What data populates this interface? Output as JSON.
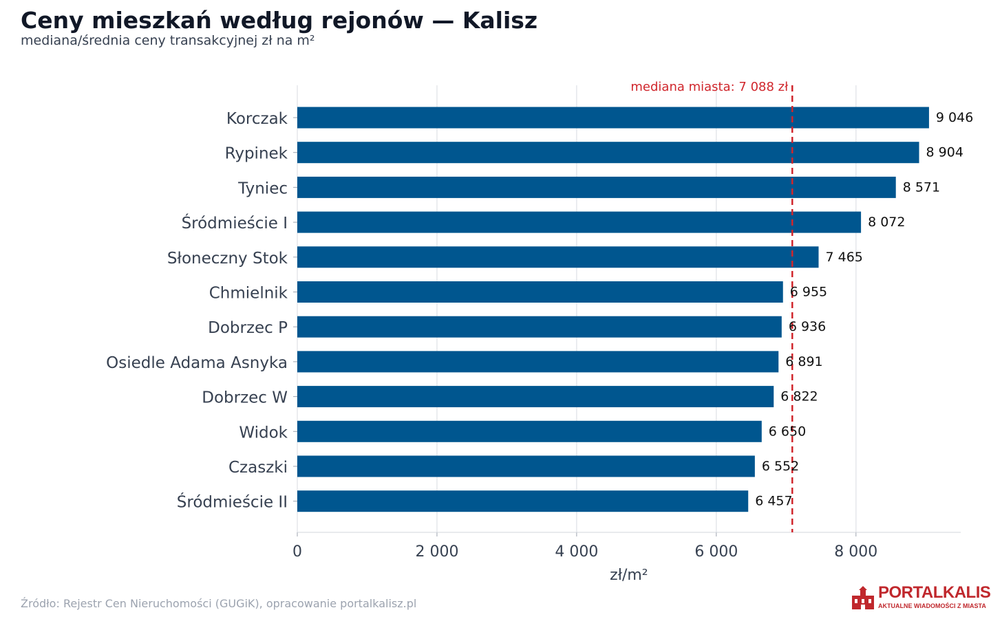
{
  "header": {
    "title": "Ceny mieszkań według rejonów — Kalisz",
    "subtitle": "mediana/średnia ceny transakcyjnej zł na m²"
  },
  "footer": {
    "source": "Źródło: Rejestr Cen Nieruchomości (GUGiK), opracowanie portalkalisz.pl"
  },
  "logo": {
    "name": "PORTALKALISZ",
    "tagline": "AKTUALNE WIADOMOŚCI Z MIASTA"
  },
  "colors": {
    "bar": "#00568f",
    "median_line": "#d0262c",
    "grid": "#e5e7eb",
    "axis_text": "#374151",
    "value_text": "#111111"
  },
  "chart_data": {
    "type": "bar",
    "orientation": "horizontal",
    "categories": [
      "Korczak",
      "Rypinek",
      "Tyniec",
      "Śródmieście I",
      "Słoneczny Stok",
      "Chmielnik",
      "Dobrzec P",
      "Osiedle Adama Asnyka",
      "Dobrzec W",
      "Widok",
      "Czaszki",
      "Śródmieście II"
    ],
    "values": [
      9046,
      8904,
      8571,
      8072,
      7465,
      6955,
      6936,
      6891,
      6822,
      6650,
      6552,
      6457
    ],
    "value_labels": [
      "9 046",
      "8 904",
      "8 571",
      "8 072",
      "7 465",
      "6 955",
      "6 936",
      "6 891",
      "6 822",
      "6 650",
      "6 552",
      "6 457"
    ],
    "xlabel": "zł/m²",
    "ylabel": "",
    "xlim": [
      0,
      9500
    ],
    "xticks": [
      0,
      2000,
      4000,
      6000,
      8000
    ],
    "xtick_labels": [
      "0",
      "2 000",
      "4 000",
      "6 000",
      "8 000"
    ],
    "grid": true,
    "reference_line": {
      "value": 7088,
      "label": "mediana miasta: 7 088 zł",
      "style": "dashed"
    }
  }
}
